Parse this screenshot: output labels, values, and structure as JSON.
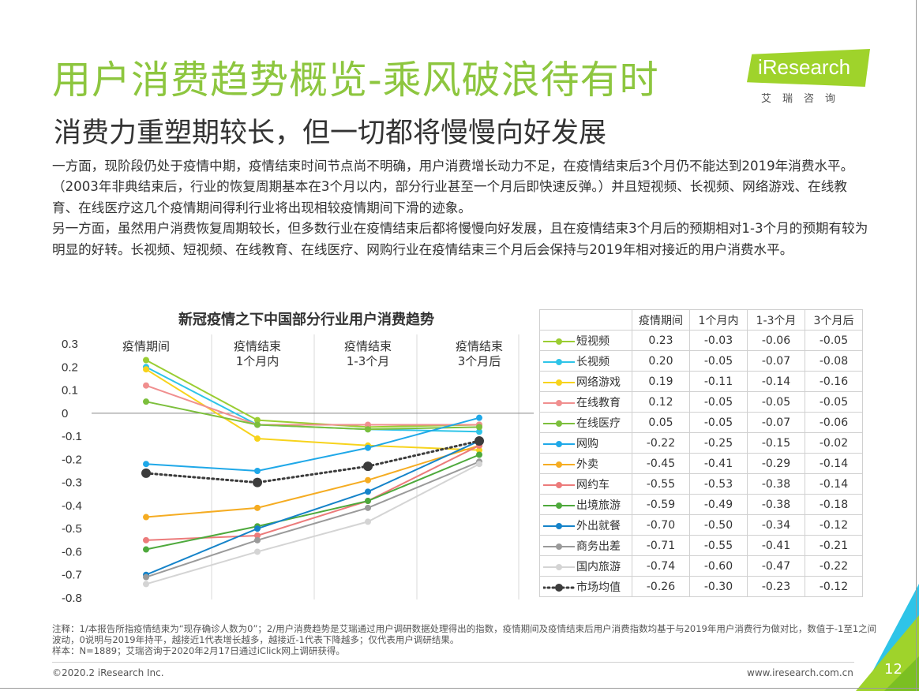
{
  "header": {
    "title": "用户消费趋势概览-乘风破浪待有时",
    "subtitle": "消费力重塑期较长，但一切都将慢慢向好发展"
  },
  "logo": {
    "brand": "iResearch",
    "sub": "艾瑞咨询"
  },
  "body": {
    "para1": "一方面，现阶段仍处于疫情中期，疫情结束时间节点尚不明确，用户消费增长动力不足，在疫情结束后3个月仍不能达到2019年消费水平。（2003年非典结束后，行业的恢复周期基本在3个月以内，部分行业甚至一个月后即快速反弹。）并且短视频、长视频、网络游戏、在线教育、在线医疗这几个疫情期间得利行业将出现相较疫情期间下滑的迹象。",
    "para2": "另一方面，虽然用户消费恢复周期较长，但多数行业在疫情结束后都将慢慢向好发展，且在疫情结束3个月后的预期相对1-3个月的预期有较为明显的好转。长视频、短视频、在线教育、在线医疗、网购行业在疫情结束三个月后会保持与2019年相对接近的用户消费水平。"
  },
  "chart_data": {
    "type": "line",
    "title": "新冠疫情之下中国部分行业用户消费趋势",
    "categories": [
      "疫情期间",
      "疫情结束\n1个月内",
      "疫情结束\n1-3个月",
      "疫情结束\n3个月后"
    ],
    "table_headers": [
      "疫情期间",
      "1个月内",
      "1-3个月",
      "3个月后"
    ],
    "ylim": [
      -0.8,
      0.3
    ],
    "yticks": [
      0.3,
      0.2,
      0.1,
      0,
      -0.1,
      -0.2,
      -0.3,
      -0.4,
      -0.5,
      -0.6,
      -0.7,
      -0.8
    ],
    "grid": false,
    "series": [
      {
        "name": "短视频",
        "values": [
          0.23,
          -0.03,
          -0.06,
          -0.05
        ],
        "color": "#9acd32"
      },
      {
        "name": "长视频",
        "values": [
          0.2,
          -0.05,
          -0.07,
          -0.08
        ],
        "color": "#2ec4e8"
      },
      {
        "name": "网络游戏",
        "values": [
          0.19,
          -0.11,
          -0.14,
          -0.16
        ],
        "color": "#f7d31c"
      },
      {
        "name": "在线教育",
        "values": [
          0.12,
          -0.05,
          -0.05,
          -0.05
        ],
        "color": "#f08f8f"
      },
      {
        "name": "在线医疗",
        "values": [
          0.05,
          -0.05,
          -0.07,
          -0.06
        ],
        "color": "#7cbf3c"
      },
      {
        "name": "网购",
        "values": [
          -0.22,
          -0.25,
          -0.15,
          -0.02
        ],
        "color": "#1fa8e8"
      },
      {
        "name": "外卖",
        "values": [
          -0.45,
          -0.41,
          -0.29,
          -0.14
        ],
        "color": "#f5ac22"
      },
      {
        "name": "网约车",
        "values": [
          -0.55,
          -0.53,
          -0.38,
          -0.14
        ],
        "color": "#ec7b7b"
      },
      {
        "name": "出境旅游",
        "values": [
          -0.59,
          -0.49,
          -0.38,
          -0.18
        ],
        "color": "#4ea93c"
      },
      {
        "name": "外出就餐",
        "values": [
          -0.7,
          -0.5,
          -0.34,
          -0.12
        ],
        "color": "#1583c9"
      },
      {
        "name": "商务出差",
        "values": [
          -0.71,
          -0.55,
          -0.41,
          -0.21
        ],
        "color": "#9a9a9a"
      },
      {
        "name": "国内旅游",
        "values": [
          -0.74,
          -0.6,
          -0.47,
          -0.22
        ],
        "color": "#d4d4d4"
      },
      {
        "name": "市场均值",
        "values": [
          -0.26,
          -0.3,
          -0.23,
          -0.12
        ],
        "color": "#3c3c3c",
        "dashed": true
      }
    ]
  },
  "notes": {
    "note1": "注释：1/本报告所指疫情结束为“现存确诊人数为0”；2/用户消费趋势是艾瑞通过用户调研数据处理得出的指数，疫情期间及疫情结束后用户消费指数均基于与2019年用户消费行为做对比，数值于-1至1之间波动，0说明与2019年持平，越接近1代表增长越多，越接近-1代表下降越多；仅代表用户调研结果。",
    "note2": "样本：N=1889；艾瑞咨询于2020年2月17日通过iClick网上调研获得。"
  },
  "footer": {
    "copyright": "©2020.2 iResearch Inc.",
    "website": "www.iresearch.com.cn",
    "page": "12"
  }
}
